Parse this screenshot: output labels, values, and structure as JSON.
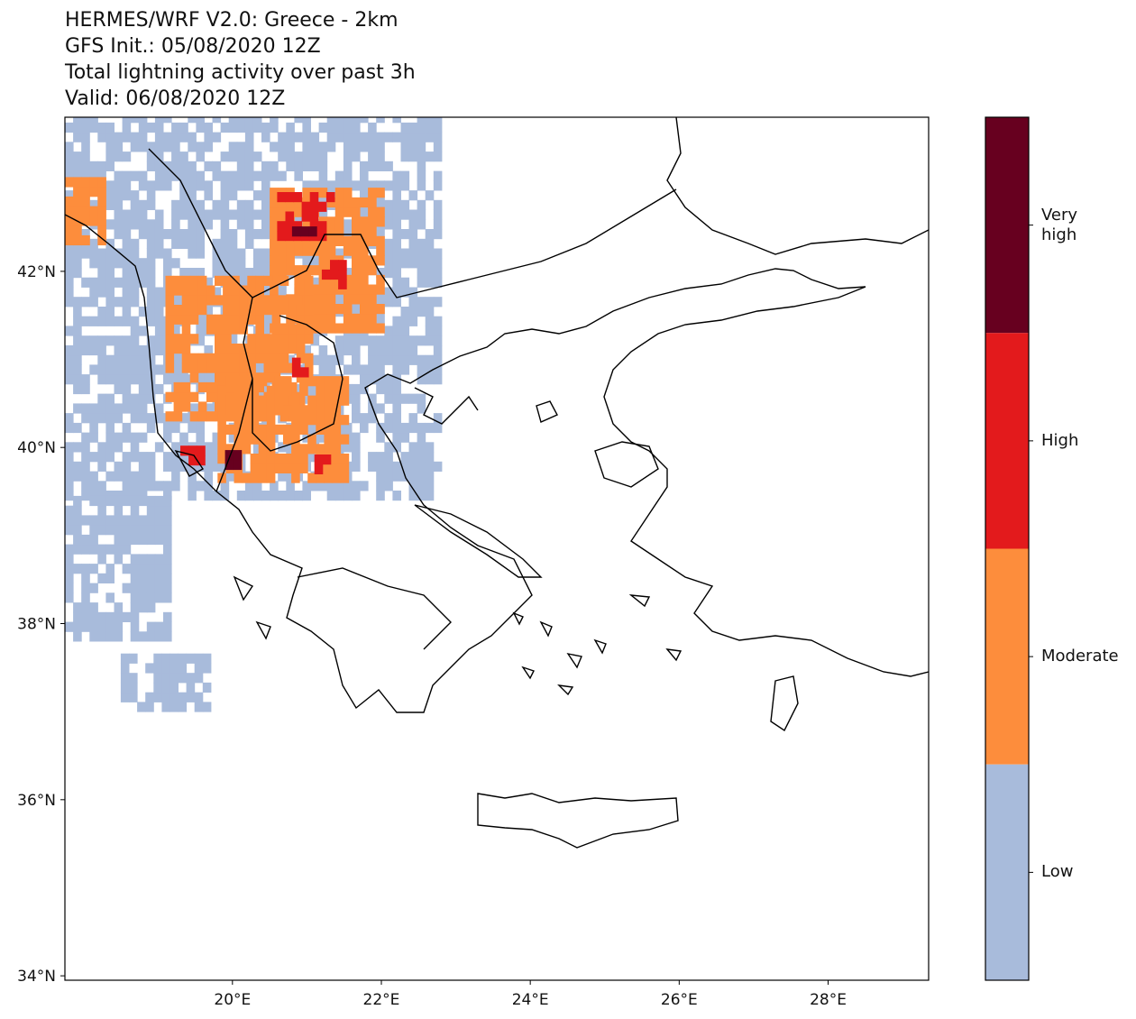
{
  "title": {
    "line1": "HERMES/WRF V2.0: Greece - 2km",
    "line2": "GFS Init.: 05/08/2020 12Z",
    "line3": "Total lightning activity over past 3h",
    "line4": "Valid: 06/08/2020 12Z"
  },
  "map": {
    "lon_range": [
      17.75,
      29.35
    ],
    "lat_range": [
      33.95,
      43.75
    ],
    "lon_ticks": [
      "20°E",
      "22°E",
      "24°E",
      "26°E",
      "28°E"
    ],
    "lon_tick_values": [
      20,
      22,
      24,
      26,
      28
    ],
    "lat_ticks": [
      "42°N",
      "40°N",
      "38°N",
      "36°N",
      "34°N"
    ],
    "lat_tick_values": [
      42,
      40,
      38,
      36,
      34
    ],
    "lightning_areas": [
      {
        "level": "low",
        "lon": [
          17.75,
          22.7
        ],
        "lat": [
          39.4,
          43.7
        ]
      },
      {
        "level": "low",
        "lon": [
          17.75,
          19.1
        ],
        "lat": [
          37.8,
          39.4
        ]
      },
      {
        "level": "low",
        "lon": [
          18.5,
          19.6
        ],
        "lat": [
          37.0,
          37.6
        ]
      },
      {
        "level": "moderate",
        "lon": [
          20.5,
          22.0
        ],
        "lat": [
          41.3,
          42.9
        ]
      },
      {
        "level": "moderate",
        "lon": [
          19.1,
          21.0
        ],
        "lat": [
          40.3,
          41.9
        ]
      },
      {
        "level": "moderate",
        "lon": [
          19.8,
          21.5
        ],
        "lat": [
          39.6,
          40.8
        ]
      },
      {
        "level": "moderate",
        "lon": [
          17.75,
          18.2
        ],
        "lat": [
          42.3,
          43.0
        ]
      },
      {
        "level": "high",
        "lon": [
          20.6,
          21.3
        ],
        "lat": [
          42.35,
          42.8
        ]
      },
      {
        "level": "high",
        "lon": [
          21.2,
          21.5
        ],
        "lat": [
          41.8,
          42.1
        ]
      },
      {
        "level": "high",
        "lon": [
          19.3,
          19.6
        ],
        "lat": [
          39.8,
          40.0
        ]
      },
      {
        "level": "high",
        "lon": [
          20.8,
          21.0
        ],
        "lat": [
          40.8,
          41.0
        ]
      },
      {
        "level": "high",
        "lon": [
          21.1,
          21.3
        ],
        "lat": [
          39.7,
          39.9
        ]
      },
      {
        "level": "very_high",
        "lon": [
          20.8,
          21.05
        ],
        "lat": [
          42.4,
          42.6
        ]
      },
      {
        "level": "very_high",
        "lon": [
          19.9,
          20.05
        ],
        "lat": [
          39.75,
          39.88
        ]
      }
    ]
  },
  "colorbar": {
    "levels": [
      {
        "key": "very_high",
        "label": "Very high",
        "color": "#67001f"
      },
      {
        "key": "high",
        "label": "High",
        "color": "#e31a1c"
      },
      {
        "key": "moderate",
        "label": "Moderate",
        "color": "#fd8d3c"
      },
      {
        "key": "low",
        "label": "Low",
        "color": "#a8bbdb"
      }
    ]
  }
}
